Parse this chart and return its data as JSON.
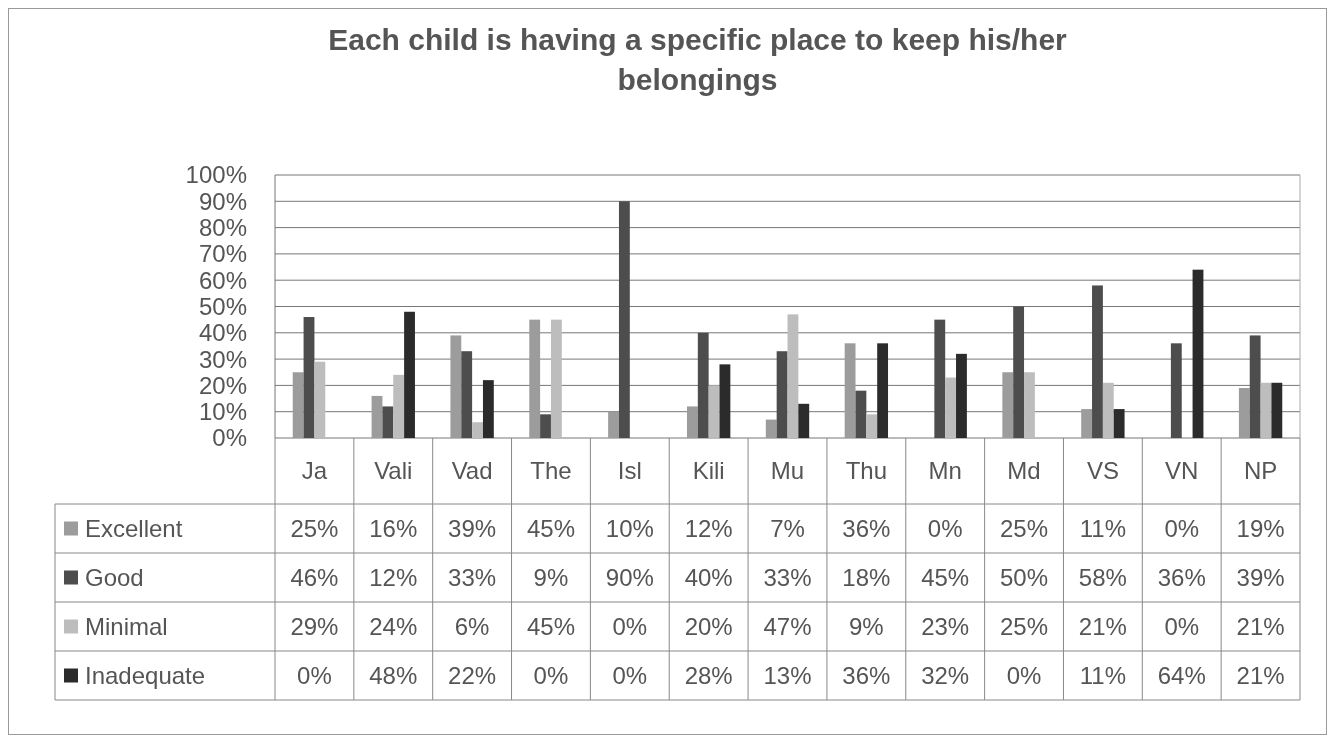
{
  "chart_data": {
    "type": "bar",
    "title": "Each child is having a specific place to keep his/her belongings",
    "categories": [
      "Ja",
      "Vali",
      "Vad",
      "The",
      "Isl",
      "Kili",
      "Mu",
      "Thu",
      "Mn",
      "Md",
      "VS",
      "VN",
      "NP"
    ],
    "series": [
      {
        "name": "Excellent",
        "color": "#9c9c9c",
        "values": [
          25,
          16,
          39,
          45,
          10,
          12,
          7,
          36,
          0,
          25,
          11,
          0,
          19
        ],
        "value_labels": [
          "25%",
          "16%",
          "39%",
          "45%",
          "10%",
          "12%",
          "7%",
          "36%",
          "0%",
          "25%",
          "11%",
          "0%",
          "19%"
        ]
      },
      {
        "name": "Good",
        "color": "#4d4d4d",
        "values": [
          46,
          12,
          33,
          9,
          90,
          40,
          33,
          18,
          45,
          50,
          58,
          36,
          39
        ],
        "value_labels": [
          "46%",
          "12%",
          "33%",
          "9%",
          "90%",
          "40%",
          "33%",
          "18%",
          "45%",
          "50%",
          "58%",
          "36%",
          "39%"
        ]
      },
      {
        "name": "Minimal",
        "color": "#bdbdbd",
        "values": [
          29,
          24,
          6,
          45,
          0,
          20,
          47,
          9,
          23,
          25,
          21,
          0,
          21
        ],
        "value_labels": [
          "29%",
          "24%",
          "6%",
          "45%",
          "0%",
          "20%",
          "47%",
          "9%",
          "23%",
          "25%",
          "21%",
          "0%",
          "21%"
        ]
      },
      {
        "name": "Inadequate",
        "color": "#2b2b2b",
        "values": [
          0,
          48,
          22,
          0,
          0,
          28,
          13,
          36,
          32,
          0,
          11,
          64,
          21
        ],
        "value_labels": [
          "0%",
          "48%",
          "22%",
          "0%",
          "0%",
          "28%",
          "13%",
          "36%",
          "32%",
          "0%",
          "11%",
          "64%",
          "21%"
        ]
      }
    ],
    "ylim": [
      0,
      100
    ],
    "yticks": [
      {
        "value": 0,
        "label": "0%"
      },
      {
        "value": 10,
        "label": "10%"
      },
      {
        "value": 20,
        "label": "20%"
      },
      {
        "value": 30,
        "label": "30%"
      },
      {
        "value": 40,
        "label": "40%"
      },
      {
        "value": 50,
        "label": "50%"
      },
      {
        "value": 60,
        "label": "60%"
      },
      {
        "value": 70,
        "label": "70%"
      },
      {
        "value": 80,
        "label": "80%"
      },
      {
        "value": 90,
        "label": "90%"
      },
      {
        "value": 100,
        "label": "100%"
      }
    ],
    "grid": "y",
    "legend": "bottom"
  }
}
